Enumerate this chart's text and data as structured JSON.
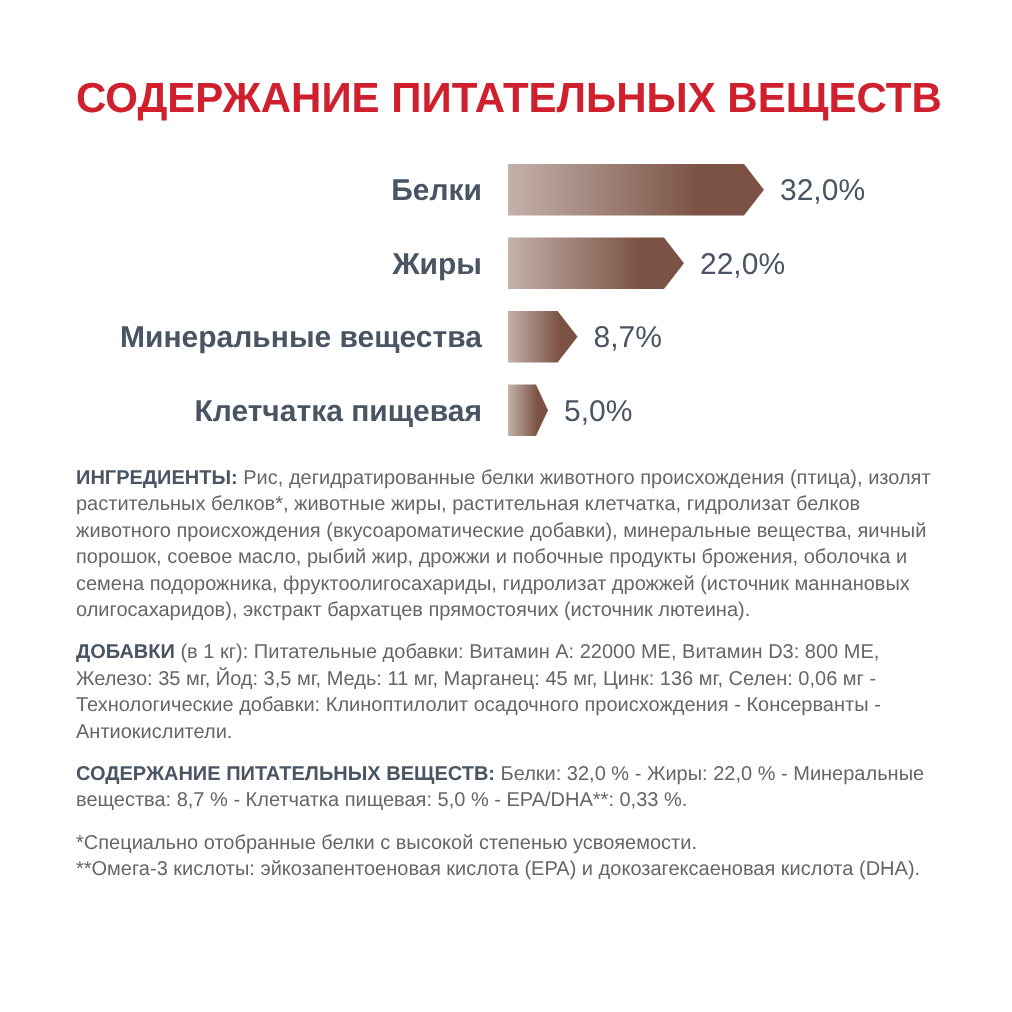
{
  "chart_data": {
    "type": "bar",
    "orientation": "horizontal",
    "title": "СОДЕРЖАНИЕ ПИТАТЕЛЬНЫХ ВЕЩЕСТВ",
    "categories": [
      "Белки",
      "Жиры",
      "Минеральные вещества",
      "Клетчатка пищевая"
    ],
    "values": [
      32.0,
      22.0,
      8.7,
      5.0
    ],
    "value_labels": [
      "32,0%",
      "22,0%",
      "8,7%",
      "5,0%"
    ],
    "color": "#7b5244",
    "annotations": [
      "ИНГРЕДИЕНТЫ: Рис, дегидратированные белки животного происхождения (птица), изолят растительных белков*, животные жиры, растительная клетчатка, гидролизат белков животного происхождения (вкусоароматические добавки), минеральные вещества, яичный порошок, соевое масло, рыбий жир, дрожжи и побочные продукты брожения, оболочка и семена подорожника, фруктоолигосахариды, гидролизат дрожжей (источник маннановых олигосахаридов), экстракт бархатцев прямостоячих (источник лютеина).",
      "ДОБАВКИ (в 1 кг): Питательные добавки: Витамин A: 22000 МЕ, Витамин D3: 800 МЕ, Железо: 35 мг, Йод: 3,5 мг, Медь: 11 мг, Марганец: 45 мг, Цинк: 136 мг, Селен: 0,06 мг - Технологические добавки: Клиноптилолит осадочного происхождения - Консерванты - Антиокислители.",
      "СОДЕРЖАНИЕ ПИТАТЕЛЬНЫХ ВЕЩЕСТВ: Белки: 32,0 % - Жиры: 22,0 % - Минеральные вещества: 8,7 % - Клетчатка пищевая: 5,0 % - EPA/DHA**: 0,33 %.",
      "*Специально отобранные белки с высокой степенью усвояемости.",
      "**Омега-3 кислоты: эйкозапентоеновая кислота (EPA) и докозагексаеновая кислота (DHA)."
    ]
  }
}
